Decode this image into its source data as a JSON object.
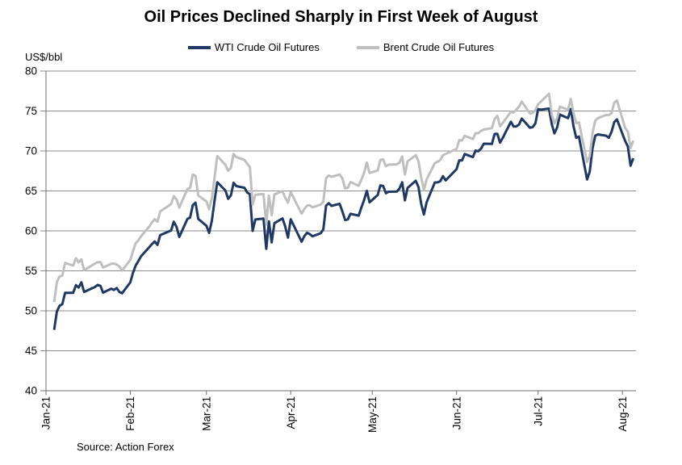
{
  "header": {
    "title": "Oil Prices Declined Sharply in First Week of August"
  },
  "footer": {
    "source": "Source: Action Forex"
  },
  "chart_data": {
    "type": "line",
    "title": "Oil Prices Declined Sharply in First Week of August",
    "xlabel": "",
    "ylabel": "US$/bbl",
    "legend_position": "top",
    "grid": "horizontal",
    "colors": {
      "wti": "#1f3864",
      "brent": "#bfbfbf",
      "grid": "#8c8c8c",
      "axis": "#6e6e6e",
      "text": "#000000"
    },
    "y_axis": {
      "min": 40,
      "max": 80,
      "step": 5,
      "ticks": [
        80,
        75,
        70,
        65,
        60,
        55,
        50,
        45,
        40
      ]
    },
    "x_axis": {
      "tick_labels": [
        "Jan-21",
        "Feb-21",
        "Mar-21",
        "Apr-21",
        "May-21",
        "Jun-21",
        "Jul-21",
        "Aug-21"
      ],
      "tick_day_of_year": [
        0,
        31,
        59,
        90,
        120,
        151,
        181,
        212
      ],
      "domain_days": [
        0,
        217
      ]
    },
    "dates": [
      "1/4",
      "1/5",
      "1/6",
      "1/7",
      "1/8",
      "1/11",
      "1/12",
      "1/13",
      "1/14",
      "1/15",
      "1/19",
      "1/20",
      "1/21",
      "1/22",
      "1/25",
      "1/26",
      "1/27",
      "1/28",
      "1/29",
      "2/1",
      "2/2",
      "2/3",
      "2/4",
      "2/5",
      "2/8",
      "2/9",
      "2/10",
      "2/11",
      "2/12",
      "2/16",
      "2/17",
      "2/18",
      "2/19",
      "2/22",
      "2/23",
      "2/24",
      "2/25",
      "2/26",
      "3/1",
      "3/2",
      "3/3",
      "3/4",
      "3/5",
      "3/8",
      "3/9",
      "3/10",
      "3/11",
      "3/12",
      "3/15",
      "3/16",
      "3/17",
      "3/18",
      "3/19",
      "3/22",
      "3/23",
      "3/24",
      "3/25",
      "3/26",
      "3/29",
      "3/30",
      "3/31",
      "4/1",
      "4/5",
      "4/6",
      "4/7",
      "4/8",
      "4/9",
      "4/12",
      "4/13",
      "4/14",
      "4/15",
      "4/16",
      "4/19",
      "4/20",
      "4/21",
      "4/22",
      "4/23",
      "4/26",
      "4/27",
      "4/28",
      "4/29",
      "4/30",
      "5/3",
      "5/4",
      "5/5",
      "5/6",
      "5/7",
      "5/10",
      "5/11",
      "5/12",
      "5/13",
      "5/14",
      "5/17",
      "5/18",
      "5/19",
      "5/20",
      "5/21",
      "5/24",
      "5/25",
      "5/26",
      "5/27",
      "5/28",
      "6/1",
      "6/2",
      "6/3",
      "6/4",
      "6/7",
      "6/8",
      "6/9",
      "6/10",
      "6/11",
      "6/14",
      "6/15",
      "6/16",
      "6/17",
      "6/18",
      "6/21",
      "6/22",
      "6/23",
      "6/24",
      "6/25",
      "6/28",
      "6/29",
      "6/30",
      "7/1",
      "7/2",
      "7/5",
      "7/6",
      "7/7",
      "7/8",
      "7/9",
      "7/12",
      "7/13",
      "7/14",
      "7/15",
      "7/16",
      "7/19",
      "7/20",
      "7/21",
      "7/22",
      "7/23",
      "7/26",
      "7/27",
      "7/28",
      "7/29",
      "7/30",
      "8/2",
      "8/3",
      "8/4",
      "8/5"
    ],
    "series": [
      {
        "name": "WTI Crude Oil Futures",
        "color_key": "wti",
        "values": [
          47.62,
          49.93,
          50.63,
          50.83,
          52.24,
          52.25,
          53.21,
          52.91,
          53.57,
          52.36,
          52.98,
          53.24,
          53.13,
          52.27,
          52.77,
          52.61,
          52.85,
          52.34,
          52.2,
          53.55,
          54.76,
          55.69,
          56.23,
          56.85,
          57.97,
          58.36,
          58.68,
          58.24,
          59.47,
          60.05,
          61.14,
          60.52,
          59.24,
          61.49,
          61.67,
          63.22,
          63.53,
          61.5,
          60.64,
          59.75,
          61.28,
          63.83,
          66.09,
          65.05,
          64.01,
          64.44,
          66.02,
          65.61,
          65.39,
          64.8,
          64.6,
          60.0,
          61.42,
          61.55,
          57.76,
          61.18,
          58.56,
          60.97,
          61.56,
          60.55,
          59.16,
          61.45,
          58.65,
          59.33,
          59.77,
          59.6,
          59.32,
          59.7,
          60.18,
          63.15,
          63.46,
          63.13,
          63.38,
          62.44,
          61.35,
          61.43,
          62.14,
          61.91,
          62.94,
          63.86,
          65.01,
          63.58,
          64.49,
          65.69,
          65.63,
          64.71,
          64.9,
          64.92,
          65.28,
          66.08,
          63.82,
          65.37,
          66.27,
          65.49,
          63.36,
          62.05,
          63.58,
          66.05,
          66.07,
          66.21,
          66.85,
          66.32,
          67.72,
          68.83,
          68.81,
          69.62,
          69.23,
          70.05,
          69.96,
          70.29,
          70.91,
          70.88,
          72.12,
          72.15,
          71.04,
          71.64,
          73.66,
          73.06,
          73.08,
          73.3,
          74.05,
          72.91,
          72.98,
          73.47,
          75.23,
          75.16,
          75.3,
          73.37,
          72.2,
          72.94,
          74.56,
          74.1,
          75.25,
          73.13,
          71.65,
          71.81,
          66.42,
          67.42,
          70.3,
          71.91,
          72.07,
          71.91,
          71.65,
          72.39,
          73.62,
          73.95,
          71.26,
          70.56,
          68.15,
          69.09
        ]
      },
      {
        "name": "Brent Crude Oil Futures",
        "color_key": "brent",
        "values": [
          51.09,
          53.6,
          54.3,
          54.38,
          55.99,
          55.66,
          56.58,
          56.06,
          56.42,
          55.1,
          55.9,
          56.08,
          56.1,
          55.41,
          55.88,
          55.91,
          55.81,
          55.53,
          55.04,
          56.35,
          57.46,
          58.46,
          58.84,
          59.34,
          60.56,
          61.09,
          61.47,
          61.14,
          62.43,
          63.35,
          64.34,
          63.93,
          62.91,
          65.24,
          65.37,
          67.04,
          66.88,
          64.42,
          63.69,
          62.7,
          64.07,
          66.74,
          69.36,
          68.24,
          67.52,
          67.9,
          69.63,
          69.22,
          68.88,
          68.39,
          68.0,
          63.28,
          64.53,
          64.62,
          60.79,
          64.41,
          61.95,
          64.57,
          64.98,
          64.14,
          63.54,
          64.86,
          62.15,
          62.74,
          63.16,
          63.2,
          62.95,
          63.28,
          63.67,
          66.58,
          66.94,
          66.77,
          67.05,
          66.57,
          65.32,
          65.4,
          66.11,
          65.65,
          66.42,
          67.27,
          68.56,
          67.25,
          67.56,
          68.88,
          68.96,
          68.09,
          68.28,
          68.32,
          68.55,
          69.32,
          67.05,
          68.71,
          69.46,
          68.71,
          66.66,
          65.11,
          66.44,
          68.46,
          68.65,
          68.87,
          69.46,
          69.63,
          70.25,
          71.35,
          71.31,
          71.89,
          71.49,
          72.22,
          72.22,
          72.52,
          72.69,
          72.86,
          73.99,
          74.39,
          73.08,
          73.51,
          74.9,
          74.81,
          75.19,
          75.56,
          76.18,
          74.68,
          74.76,
          75.13,
          75.84,
          76.17,
          77.16,
          74.53,
          73.43,
          74.12,
          75.55,
          75.16,
          76.49,
          74.76,
          73.47,
          73.59,
          68.62,
          69.35,
          72.23,
          73.79,
          74.1,
          74.5,
          74.48,
          74.74,
          76.05,
          76.33,
          72.89,
          72.41,
          70.38,
          71.29
        ]
      }
    ]
  }
}
